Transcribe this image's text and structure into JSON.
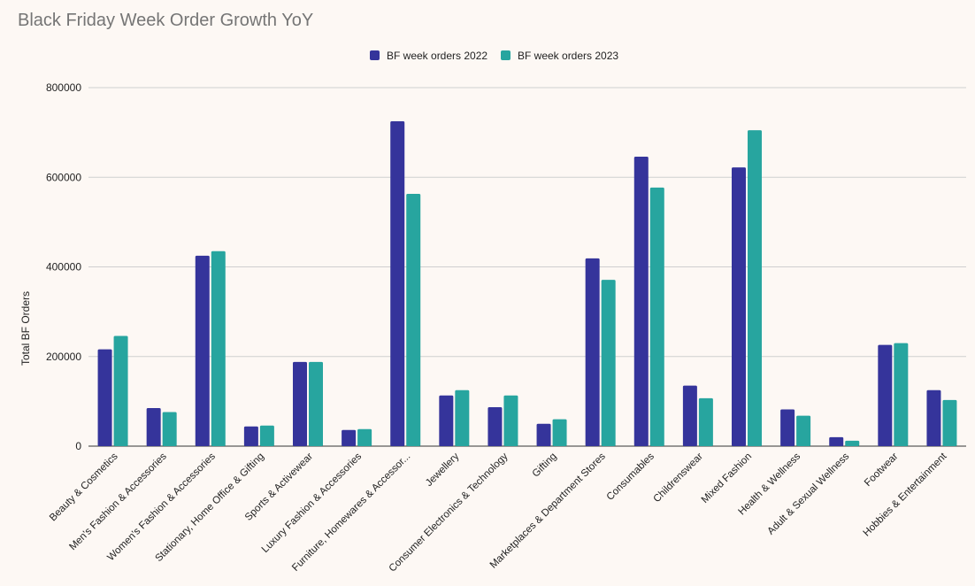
{
  "chart_data": {
    "type": "bar",
    "title": "Black Friday Week Order Growth YoY",
    "xlabel": "",
    "ylabel": "Total BF Orders",
    "ylim": [
      0,
      800000
    ],
    "yticks": [
      0,
      200000,
      400000,
      600000,
      800000
    ],
    "tick_labels": [
      "0",
      "200000",
      "400000",
      "600000",
      "800000"
    ],
    "legend_position": "top-center",
    "categories": [
      "Beauty & Cosmetics",
      "Men's Fashion & Accessories",
      "Women's Fashion & Accessories",
      "Stationary, Home Office & Gifting",
      "Sports & Activewear",
      "Luxury Fashion & Accessories",
      "Furniture, Homewares & Accessor...",
      "Jewellery",
      "Consumer Electronics & Technology",
      "Gifting",
      "Marketplaces & Department Stores",
      "Consumables",
      "Childrenswear",
      "Mixed Fashion",
      "Health & Wellness",
      "Adult & Sexual Wellness",
      "Footwear",
      "Hobbies & Entertainment"
    ],
    "series": [
      {
        "name": "BF week orders 2022",
        "color": "#35349b",
        "values": [
          216000,
          85000,
          425000,
          44000,
          188000,
          36000,
          725000,
          113000,
          87000,
          50000,
          419000,
          646000,
          135000,
          622000,
          82000,
          20000,
          226000,
          125000
        ]
      },
      {
        "name": "BF week orders 2023",
        "color": "#27a59f",
        "values": [
          246000,
          76000,
          435000,
          46000,
          188000,
          38000,
          563000,
          125000,
          113000,
          60000,
          371000,
          577000,
          107000,
          705000,
          68000,
          12000,
          230000,
          103000
        ]
      }
    ]
  }
}
